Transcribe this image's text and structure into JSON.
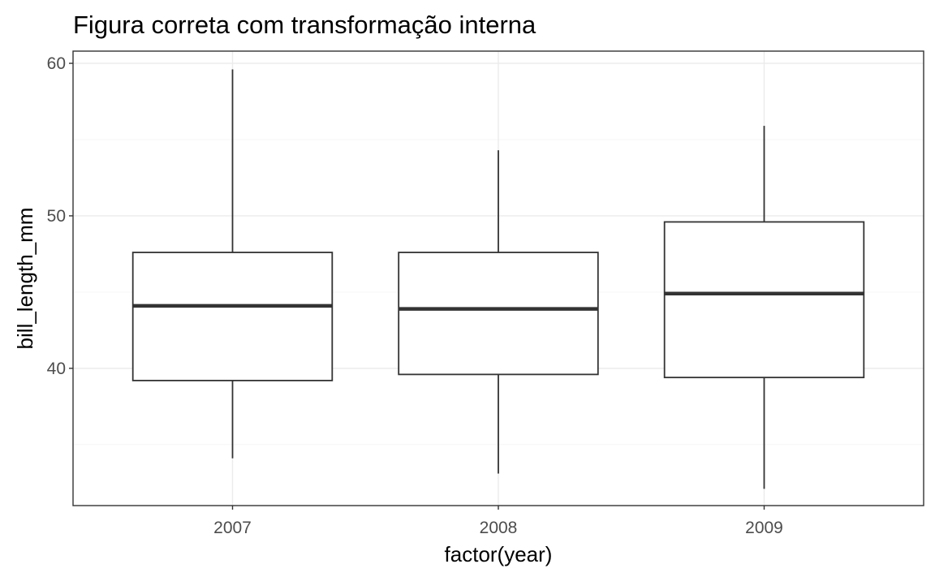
{
  "chart_data": {
    "type": "boxplot",
    "title": "Figura correta com transformação interna",
    "xlabel": "factor(year)",
    "ylabel": "bill_length_mm",
    "categories": [
      "2007",
      "2008",
      "2009"
    ],
    "boxes": [
      {
        "category": "2007",
        "min": 34.1,
        "q1": 39.2,
        "median": 44.1,
        "q3": 47.6,
        "max": 59.6
      },
      {
        "category": "2008",
        "min": 33.1,
        "q1": 39.6,
        "median": 43.9,
        "q3": 47.6,
        "max": 54.3
      },
      {
        "category": "2009",
        "min": 32.1,
        "q1": 39.4,
        "median": 44.9,
        "q3": 49.6,
        "max": 55.9
      }
    ],
    "yticks": [
      40,
      50,
      60
    ],
    "yticklabels": [
      "40",
      "50",
      "60"
    ],
    "ylim": [
      31.0,
      60.8
    ],
    "grid": true,
    "theme": "bw"
  }
}
